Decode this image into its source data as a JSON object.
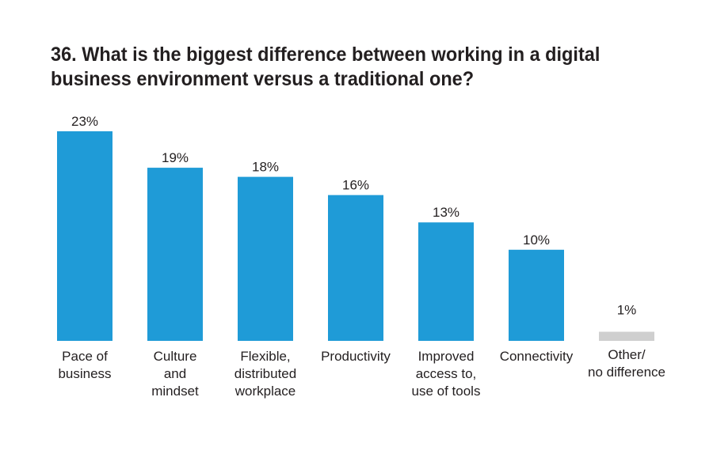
{
  "title": "36. What is the biggest difference between working in a digital business environment versus a traditional one?",
  "chart_data": {
    "type": "bar",
    "title": "36. What is the biggest difference between working in a digital business environment versus a traditional one?",
    "categories": [
      [
        "Pace of",
        "business"
      ],
      [
        "Culture",
        "and",
        "mindset"
      ],
      [
        "Flexible,",
        "distributed",
        "workplace"
      ],
      [
        "Productivity"
      ],
      [
        "Improved",
        "access to,",
        "use of tools"
      ],
      [
        "Connectivity"
      ],
      [
        "Other/",
        "no difference"
      ]
    ],
    "values": [
      23,
      19,
      18,
      16,
      13,
      10,
      1
    ],
    "value_labels": [
      "23%",
      "19%",
      "18%",
      "16%",
      "13%",
      "10%",
      "1%"
    ],
    "bar_colors": [
      "#1f9bd7",
      "#1f9bd7",
      "#1f9bd7",
      "#1f9bd7",
      "#1f9bd7",
      "#1f9bd7",
      "#cfcfcf"
    ],
    "ylim": [
      0,
      23
    ],
    "xlabel": "",
    "ylabel": "",
    "grid": false,
    "legend": "none"
  }
}
